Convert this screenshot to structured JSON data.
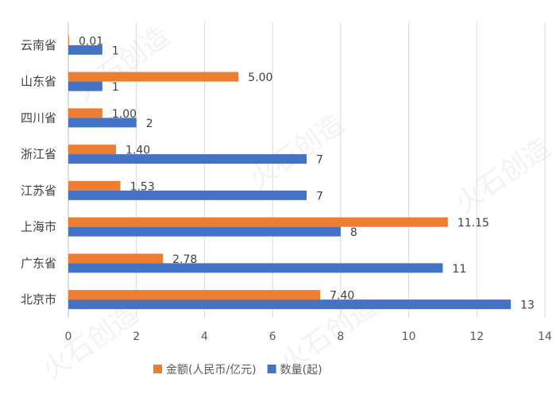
{
  "chart_data": {
    "type": "bar",
    "orientation": "horizontal",
    "categories": [
      "云南省",
      "山东省",
      "四川省",
      "浙江省",
      "江苏省",
      "上海市",
      "广东省",
      "北京市"
    ],
    "series": [
      {
        "name": "金额(人民币/亿元)",
        "color": "#ed7d31",
        "values": [
          0.01,
          5.0,
          1.0,
          1.4,
          1.53,
          11.15,
          2.78,
          7.4
        ],
        "labels": [
          "0.01",
          "5.00",
          "1.00",
          "1.40",
          "1.53",
          "11.15",
          "2.78",
          "7.40"
        ]
      },
      {
        "name": "数量(起)",
        "color": "#4472c4",
        "values": [
          1,
          1,
          2,
          7,
          7,
          8,
          11,
          13
        ],
        "labels": [
          "1",
          "1",
          "2",
          "7",
          "7",
          "8",
          "11",
          "13"
        ]
      }
    ],
    "xlim": [
      0,
      14
    ],
    "xticks": [
      "0",
      "2",
      "4",
      "6",
      "8",
      "10",
      "12",
      "14"
    ],
    "grid": true,
    "legend": "bottom"
  },
  "watermark": {
    "text": "火石创造"
  }
}
